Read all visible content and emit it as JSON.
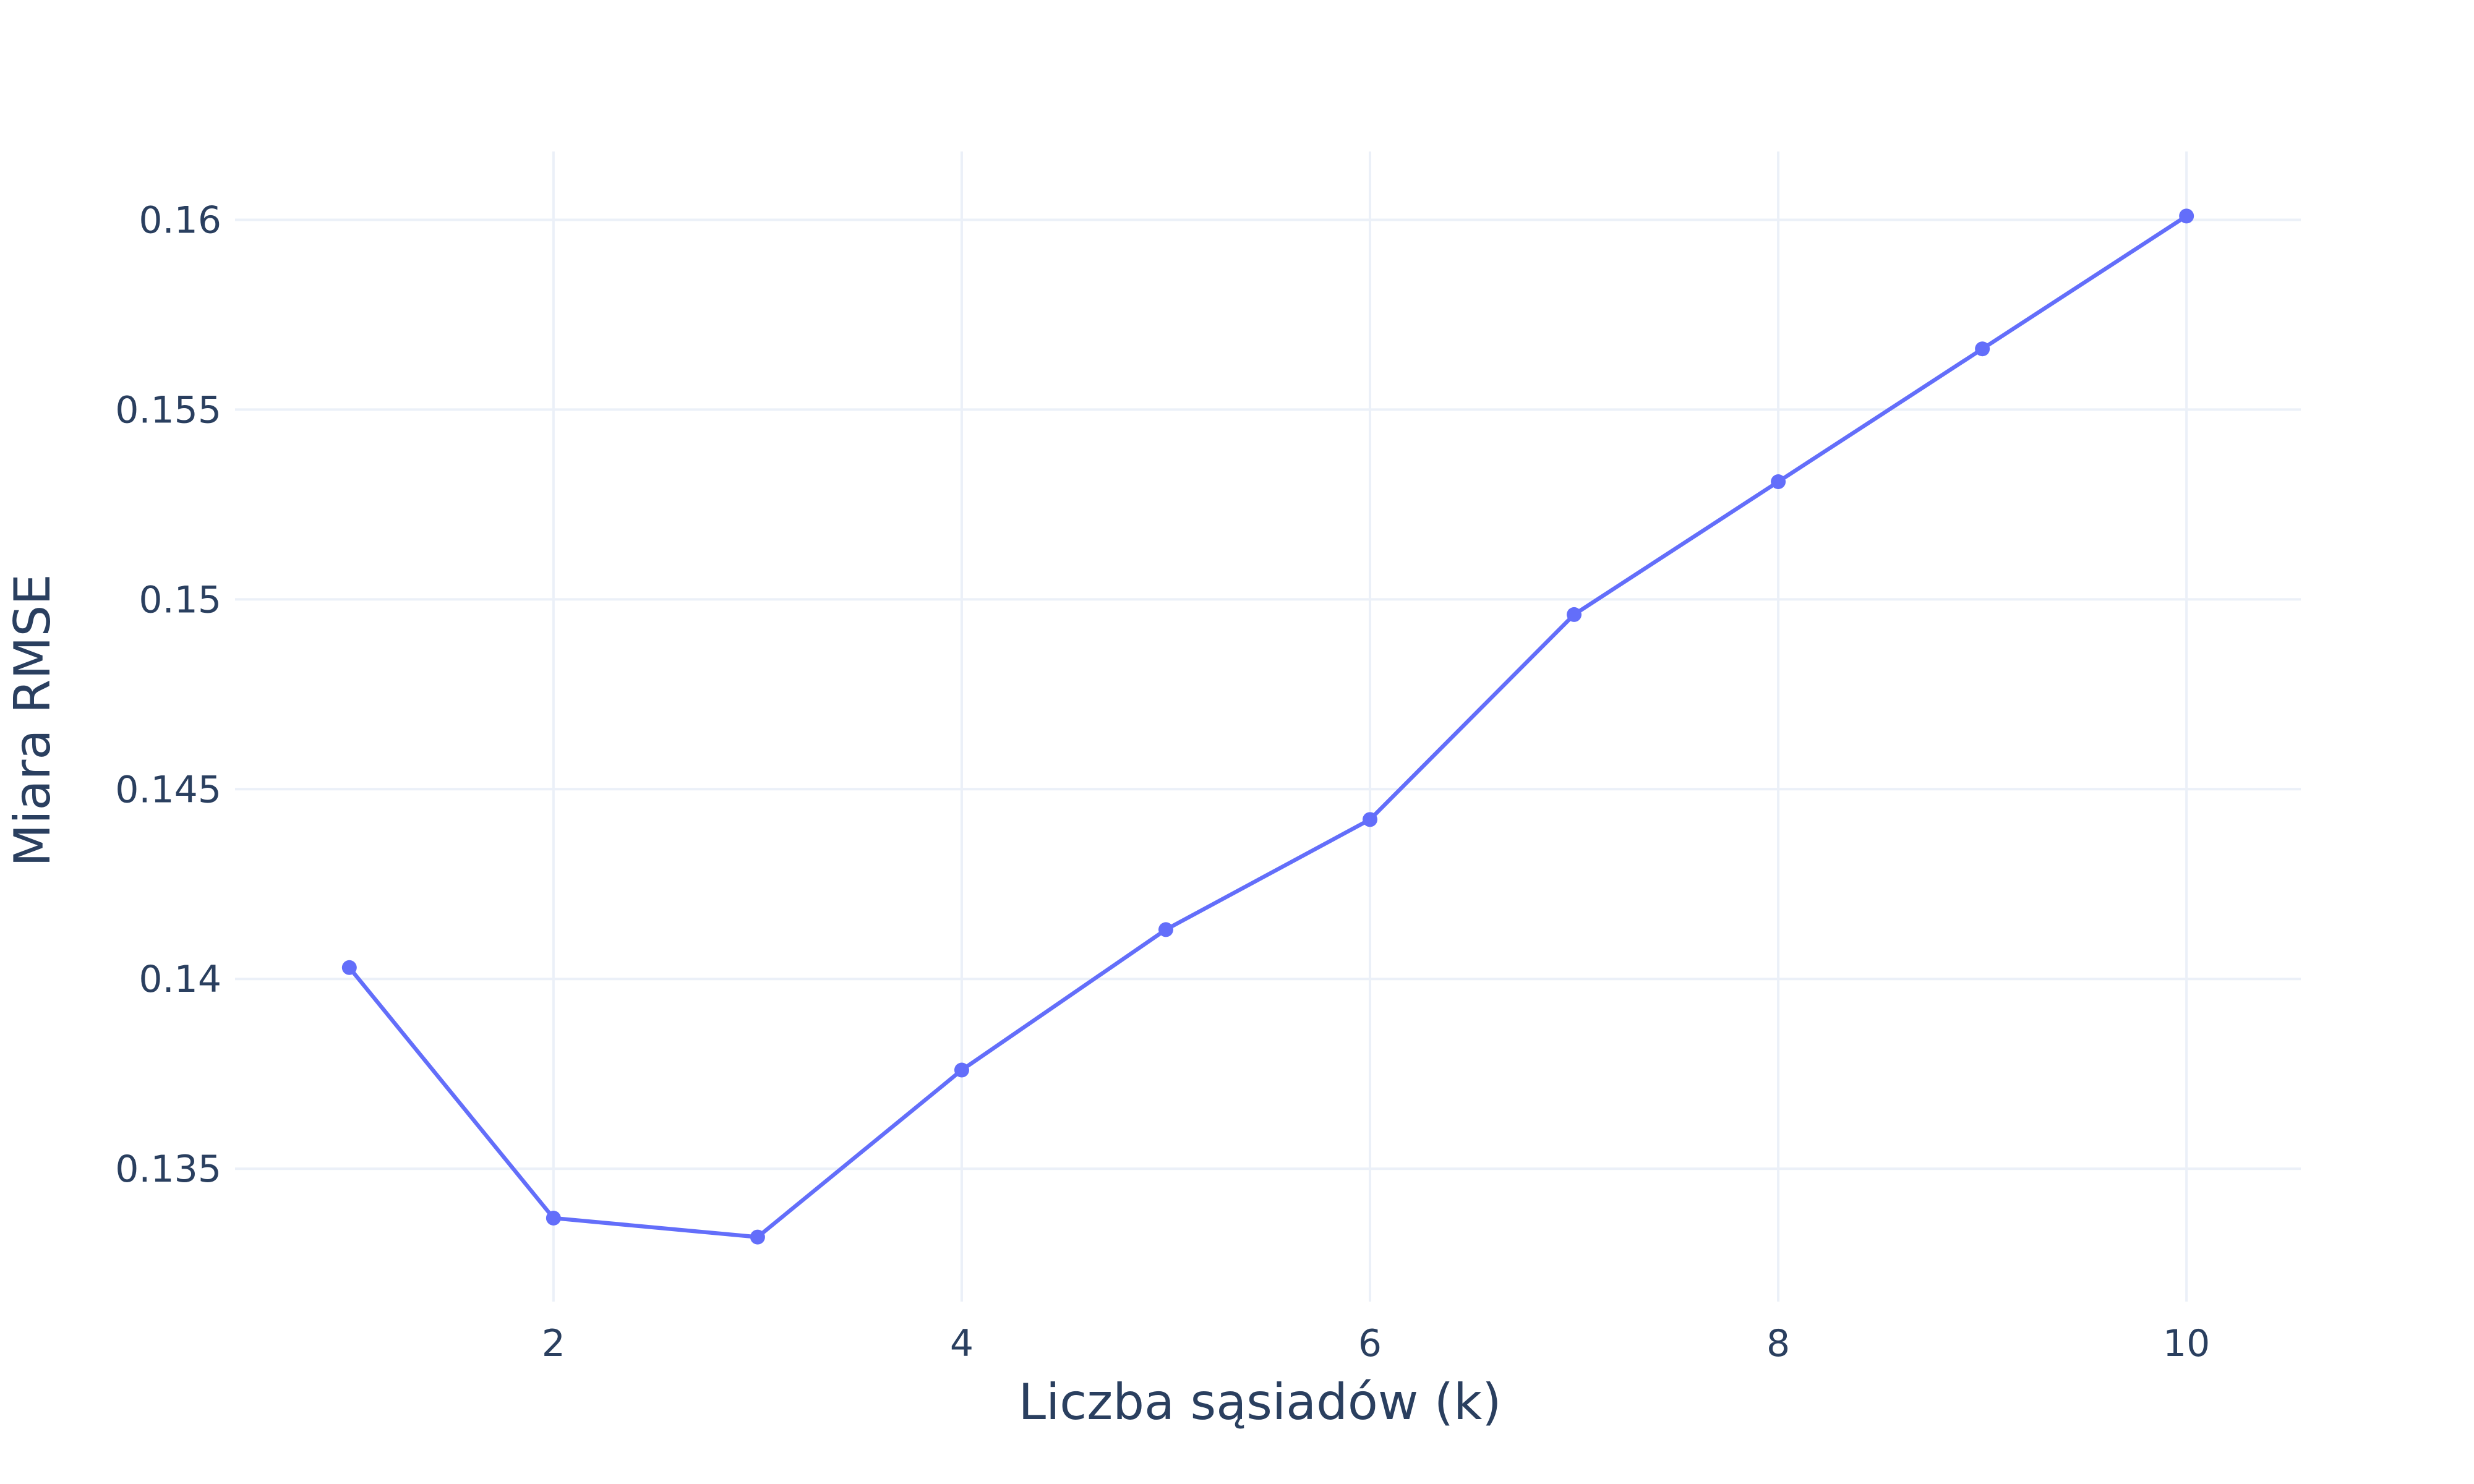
{
  "chart_data": {
    "type": "line",
    "title": "",
    "xlabel": "Liczba sąsiadów (k)",
    "ylabel": "Miara RMSE",
    "x": [
      1,
      2,
      3,
      4,
      5,
      6,
      7,
      8,
      9,
      10
    ],
    "series": [
      {
        "name": "",
        "color": "#636efa",
        "values": [
          0.1403,
          0.1337,
          0.1332,
          0.1376,
          0.1413,
          0.1442,
          0.1496,
          0.1531,
          0.1566,
          0.1601
        ]
      }
    ],
    "xlim": [
      0.44,
      10.56
    ],
    "ylim": [
      0.1315,
      0.1618
    ],
    "xticks": [
      2,
      4,
      6,
      8,
      10
    ],
    "xtick_labels": [
      "2",
      "4",
      "6",
      "8",
      "10"
    ],
    "yticks": [
      0.135,
      0.14,
      0.145,
      0.15,
      0.155,
      0.16
    ],
    "ytick_labels": [
      "0.135",
      "0.14",
      "0.145",
      "0.15",
      "0.155",
      "0.16"
    ],
    "grid": true,
    "legend": "none",
    "markers": true
  }
}
